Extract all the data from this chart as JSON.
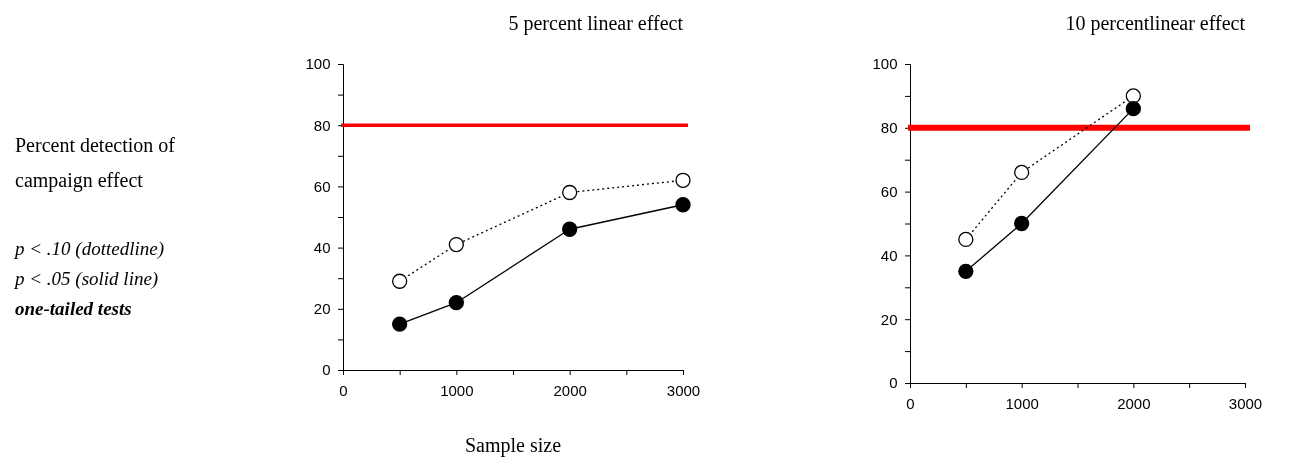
{
  "chart_data": [
    {
      "type": "line",
      "title": "5 percent linear effect",
      "xlabel": "Sample size",
      "ylabel": "Percent detection of campaign effect",
      "x": [
        500,
        1000,
        2000,
        3000
      ],
      "series": [
        {
          "color": "#000000",
          "line_style": "dotted",
          "values": [
            29,
            41,
            58,
            62
          ]
        },
        {
          "color": "#000000",
          "line_style": "solid",
          "values": [
            15,
            22,
            46,
            54
          ]
        }
      ],
      "xlim": [
        0,
        3000
      ],
      "xticks": [
        0,
        {
          "value": 500,
          "label": null
        },
        1000,
        {
          "value": 1500,
          "label": null
        },
        2000,
        {
          "value": 2500,
          "label": null
        },
        3000
      ],
      "ylim": [
        0,
        100
      ],
      "yticks": [
        0,
        {
          "value": 10,
          "label": null
        },
        20,
        {
          "value": 30,
          "label": null
        },
        40,
        {
          "value": 50,
          "label": null
        },
        60,
        {
          "value": 70,
          "label": null
        },
        80,
        {
          "value": 90,
          "label": null
        },
        100
      ],
      "ref_lines": [
        {
          "axis": "y",
          "value": 80,
          "color": "#ff0000"
        }
      ],
      "marker": "circle",
      "grid": false,
      "annotations": [
        "p < .10  (dottedline)",
        "p < .05  (solid line)",
        "one-tailed tests"
      ]
    },
    {
      "type": "line",
      "title": "10 percentlinear effect",
      "x": [
        500,
        1000,
        2000
      ],
      "series": [
        {
          "color": "#000000",
          "line_style": "dotted",
          "values": [
            45,
            66,
            90
          ]
        },
        {
          "color": "#000000",
          "line_style": "solid",
          "values": [
            35,
            50,
            86
          ]
        }
      ],
      "xlim": [
        0,
        3000
      ],
      "xticks": [
        0,
        {
          "value": 500,
          "label": null
        },
        1000,
        {
          "value": 1500,
          "label": null
        },
        2000,
        {
          "value": 2500,
          "label": null
        },
        3000
      ],
      "ylim": [
        0,
        100
      ],
      "yticks": [
        0,
        {
          "value": 10,
          "label": null
        },
        20,
        {
          "value": 30,
          "label": null
        },
        40,
        {
          "value": 50,
          "label": null
        },
        60,
        {
          "value": 70,
          "label": null
        },
        80,
        {
          "value": 90,
          "label": null
        },
        100
      ],
      "ref_lines": [
        {
          "axis": "y",
          "value": 80,
          "color": "#ff0000"
        }
      ],
      "marker": "circle",
      "grid": false
    }
  ]
}
